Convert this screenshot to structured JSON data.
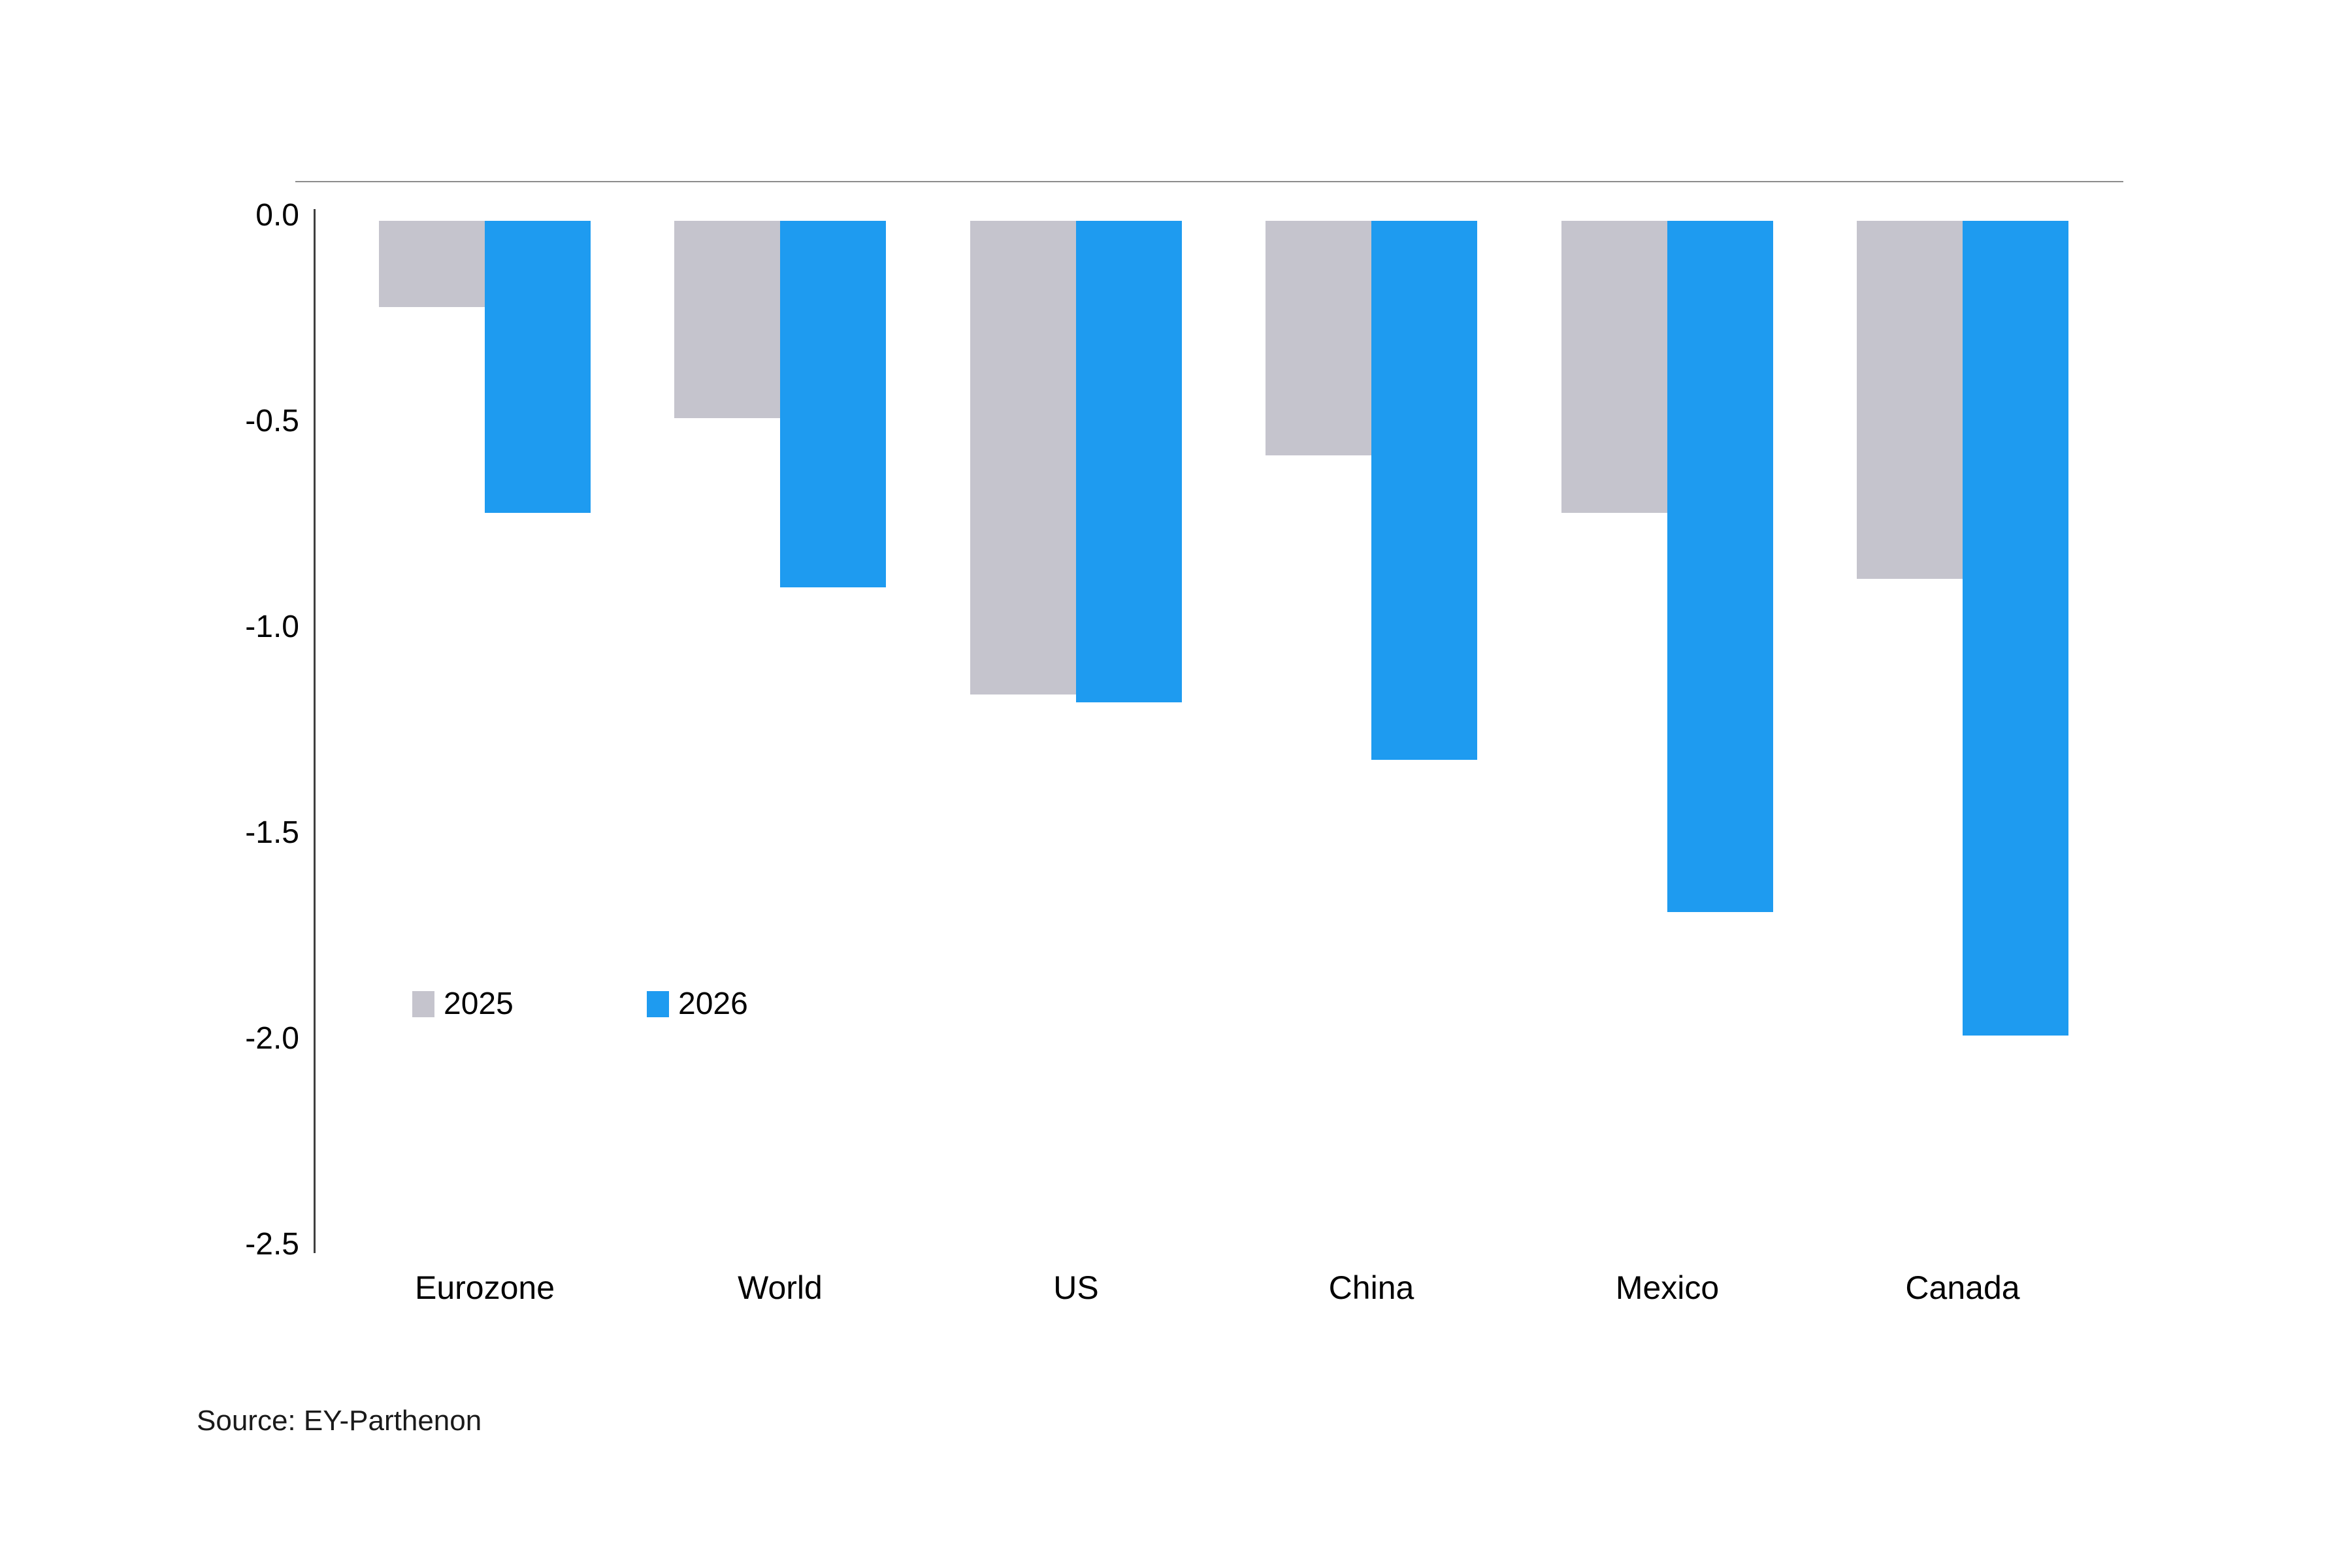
{
  "chart_data": {
    "type": "bar",
    "categories": [
      "Eurozone",
      "World",
      "US",
      "China",
      "Mexico",
      "Canada"
    ],
    "series": [
      {
        "name": "2025",
        "color": "#C5C4CD",
        "values": [
          -0.21,
          -0.48,
          -1.15,
          -0.57,
          -0.71,
          -0.87
        ]
      },
      {
        "name": "2026",
        "color": "#1E9BF0",
        "values": [
          -0.71,
          -0.89,
          -1.17,
          -1.31,
          -1.68,
          -1.98
        ]
      }
    ],
    "ylim": [
      0.0,
      -2.5
    ],
    "yticks": [
      "0.0",
      "-0.5",
      "-1.0",
      "-1.5",
      "-2.0",
      "-2.5"
    ],
    "grid": false,
    "legend_position": "inside-left-middle",
    "title": ""
  },
  "source": {
    "label": "Source: EY-Parthenon"
  },
  "colors": {
    "series_2025": "#C5C4CD",
    "series_2026": "#1E9BF0",
    "axis_line": "#3f3f3f",
    "top_border": "#8c8c8c"
  }
}
